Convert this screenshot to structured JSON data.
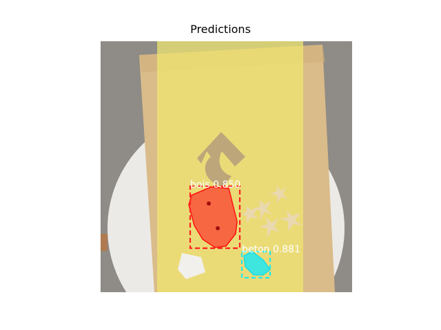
{
  "title": "Predictions",
  "detections": [
    {
      "class": "bois",
      "score": "0.850",
      "label": "bois 0.850",
      "color": "#ff2020"
    },
    {
      "class": "beton",
      "score": "0.881",
      "label": "beton 0.881",
      "color": "#20e8f0"
    }
  ],
  "colors": {
    "background_floor": "#8f8b86",
    "plate": "#eceae7",
    "board": "#d9bc8a",
    "mask_overlay": "#f0e870"
  }
}
